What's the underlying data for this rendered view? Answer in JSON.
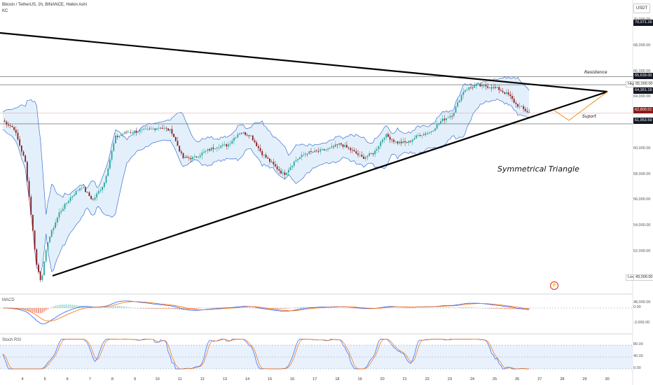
{
  "header": {
    "title": "Bitcoin / TetherUS, 2h, BINANCE, Heikin Ashi",
    "sub": "KC"
  },
  "currency_button": "USDT",
  "price_axis": [
    "70,000.00",
    "68,000.00",
    "66,000.00",
    "64,000.00",
    "62,000.00",
    "60,000.00",
    "58,000.00",
    "56,000.00",
    "54,000.00",
    "52,000.00",
    "50,000.00",
    "48,000.00"
  ],
  "macd_axis": [
    "0.00",
    "-2,000.00"
  ],
  "rsi_axis": [
    "80.00",
    "40.00",
    "0.00"
  ],
  "tags": {
    "top": "70,071.16",
    "resistance": "65,639.00",
    "high_label": "High",
    "high_value": "65,000.00",
    "kc_upper": "64,361.19",
    "current": "62,809.01",
    "support": "61,953.59",
    "low_label": "Low",
    "low_value": "49,000.00"
  },
  "annotations": {
    "resistance": "Resistence",
    "support": "Suport",
    "pattern": "Symmetrical Triangle"
  },
  "panes": {
    "macd": "MACD",
    "rsi": "Stoch RSI"
  },
  "dates": [
    "4",
    "5",
    "6",
    "7",
    "8",
    "9",
    "10",
    "11",
    "12",
    "13",
    "14",
    "15",
    "16",
    "17",
    "18",
    "19",
    "20",
    "21",
    "22",
    "23",
    "24",
    "25",
    "26",
    "27",
    "28",
    "29",
    "30"
  ],
  "colors": {
    "up": "#26a69a",
    "down": "#8b1a1a",
    "kc_line": "#3b6fd4",
    "kc_fill": "#e3f0fb",
    "macd_line": "#2962ff",
    "signal_line": "#ff6d00",
    "rsi_fill": "#e8f1fc"
  },
  "chart_data": {
    "type": "candlestick",
    "symbol": "Bitcoin / TetherUS",
    "interval": "2h",
    "exchange": "BINANCE",
    "ylim": [
      48000,
      70000
    ],
    "levels": {
      "resistance": 65639,
      "support": 61953.59,
      "current": 62809.01,
      "high": 65000,
      "low": 49000
    },
    "price_path": [
      [
        0,
        62200
      ],
      [
        0.5,
        61600
      ],
      [
        1,
        59000
      ],
      [
        1.25,
        55000
      ],
      [
        1.5,
        51000
      ],
      [
        1.7,
        49700
      ],
      [
        2,
        52800
      ],
      [
        2.5,
        55000
      ],
      [
        3,
        56200
      ],
      [
        3.5,
        57100
      ],
      [
        4,
        56000
      ],
      [
        4.5,
        57300
      ],
      [
        5,
        60900
      ],
      [
        5.5,
        61300
      ],
      [
        6,
        61400
      ],
      [
        6.5,
        61500
      ],
      [
        7,
        61700
      ],
      [
        7.5,
        61400
      ],
      [
        8,
        59300
      ],
      [
        8.5,
        59300
      ],
      [
        9,
        59800
      ],
      [
        9.5,
        60200
      ],
      [
        10,
        60300
      ],
      [
        10.5,
        61300
      ],
      [
        11,
        61100
      ],
      [
        11.5,
        59700
      ],
      [
        12,
        58800
      ],
      [
        12.5,
        58000
      ],
      [
        13,
        59100
      ],
      [
        13.5,
        59700
      ],
      [
        14,
        59800
      ],
      [
        14.5,
        60000
      ],
      [
        15,
        60400
      ],
      [
        15.5,
        59900
      ],
      [
        16,
        59300
      ],
      [
        16.5,
        59700
      ],
      [
        17,
        61100
      ],
      [
        17.5,
        60500
      ],
      [
        18,
        60500
      ],
      [
        18.5,
        61100
      ],
      [
        19,
        61300
      ],
      [
        19.5,
        62200
      ],
      [
        20,
        62700
      ],
      [
        20.5,
        64600
      ],
      [
        21,
        64900
      ],
      [
        21.5,
        64900
      ],
      [
        22,
        64700
      ],
      [
        22.5,
        64200
      ],
      [
        22.8,
        63500
      ],
      [
        23.4,
        62800
      ]
    ]
  }
}
